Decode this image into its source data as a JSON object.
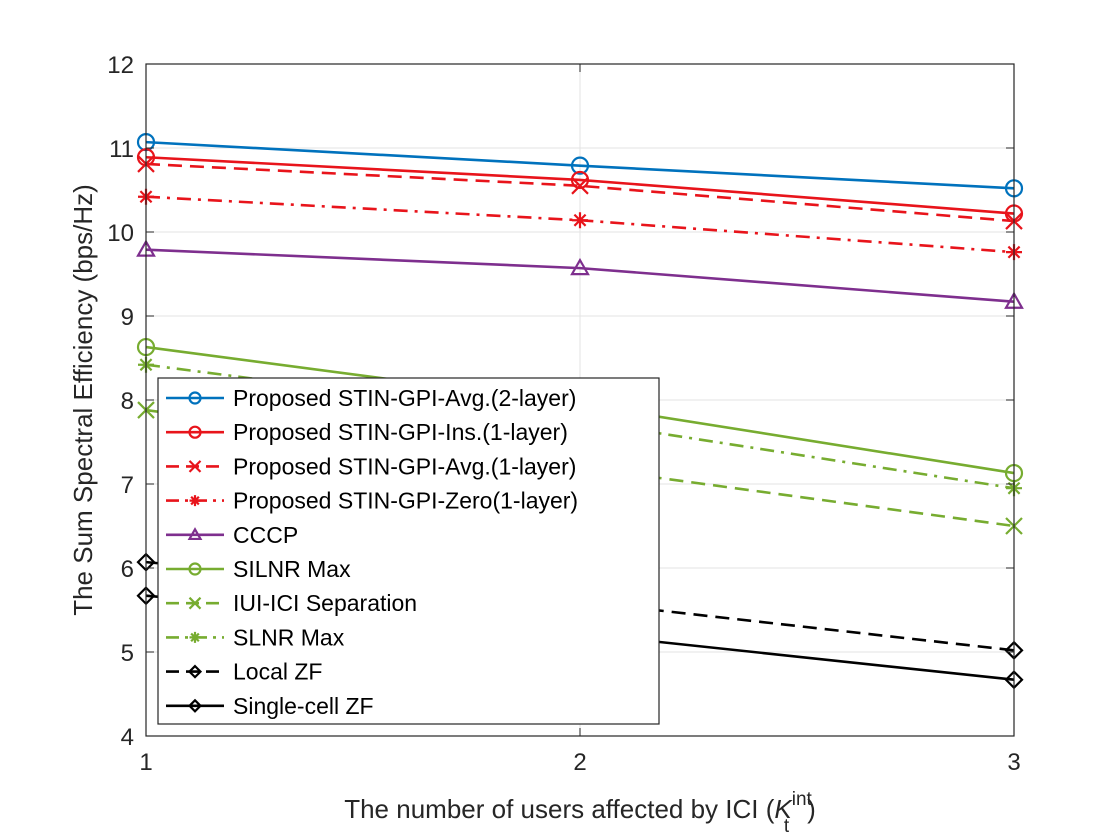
{
  "chart_data": {
    "type": "line",
    "title": "",
    "xlabel": "The number of users affected by ICI (",
    "xlabel_math": {
      "base": "K",
      "sup": "int",
      "sub": "t",
      "suffix": ")"
    },
    "ylabel": "The Sum Spectral Efficiency (bps/Hz)",
    "x": [
      1,
      2,
      3
    ],
    "xlim": [
      1,
      3
    ],
    "ylim": [
      4,
      12
    ],
    "xticks": [
      "1",
      "2",
      "3"
    ],
    "yticks": [
      "4",
      "5",
      "6",
      "7",
      "8",
      "9",
      "10",
      "11",
      "12"
    ],
    "grid": true,
    "legend_position": "bottom-left",
    "series": [
      {
        "name": "Proposed STIN-GPI-Avg.(2-layer)",
        "values": [
          11.07,
          10.79,
          10.52
        ],
        "color": "#0072BD",
        "dash": "solid",
        "marker": "circle"
      },
      {
        "name": "Proposed STIN-GPI-Ins.(1-layer)",
        "values": [
          10.89,
          10.62,
          10.22
        ],
        "color": "#E8141B",
        "dash": "solid",
        "marker": "circle"
      },
      {
        "name": "Proposed STIN-GPI-Avg.(1-layer)",
        "values": [
          10.81,
          10.55,
          10.13
        ],
        "color": "#E8141B",
        "dash": "dashed",
        "marker": "x"
      },
      {
        "name": "Proposed STIN-GPI-Zero(1-layer)",
        "values": [
          10.42,
          10.14,
          9.76
        ],
        "color": "#E8141B",
        "dash": "dashdot",
        "marker": "star"
      },
      {
        "name": "CCCP",
        "values": [
          9.79,
          9.57,
          9.17
        ],
        "color": "#7E2F8E",
        "dash": "solid",
        "marker": "triangle"
      },
      {
        "name": "SILNR Max",
        "values": [
          8.63,
          7.95,
          7.13
        ],
        "color": "#77AC30",
        "dash": "solid",
        "marker": "circle"
      },
      {
        "name": "IUI-ICI Separation",
        "values": [
          7.88,
          7.2,
          6.5
        ],
        "color": "#77AC30",
        "dash": "dashed",
        "marker": "x"
      },
      {
        "name": "SLNR Max",
        "values": [
          8.42,
          7.75,
          6.95
        ],
        "color": "#77AC30",
        "dash": "dashdot",
        "marker": "star"
      },
      {
        "name": "Local ZF",
        "values": [
          6.07,
          5.6,
          5.02
        ],
        "color": "#000000",
        "dash": "dashed",
        "marker": "diamond"
      },
      {
        "name": "Single-cell ZF",
        "values": [
          5.67,
          5.22,
          4.67
        ],
        "color": "#000000",
        "dash": "solid",
        "marker": "diamond"
      }
    ]
  }
}
